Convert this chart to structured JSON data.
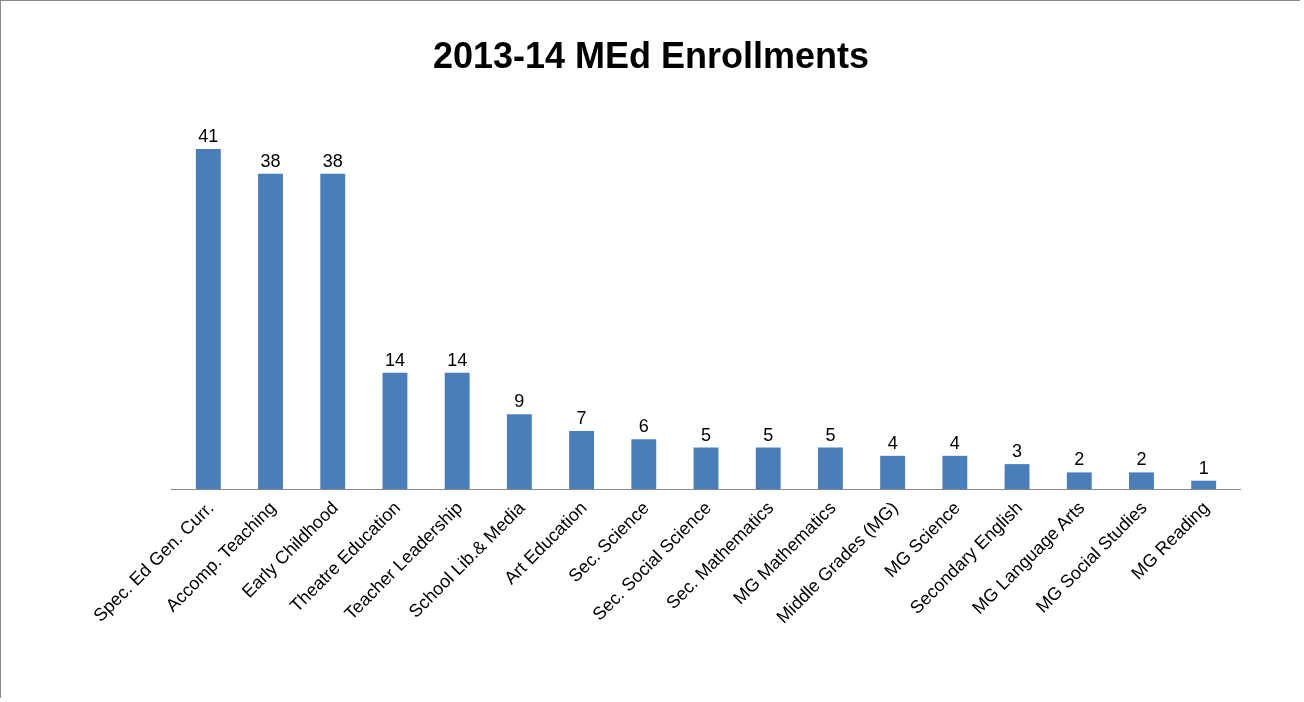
{
  "chart_data": {
    "type": "bar",
    "title": "2013-14 MEd Enrollments",
    "categories": [
      "Spec. Ed Gen. Curr.",
      "Accomp. Teaching",
      "Early Childhood",
      "Theatre Education",
      "Teacher Leadership",
      "School Lib.& Media",
      "Art Education",
      "Sec. Science",
      "Sec. Social Science",
      "Sec. Mathematics",
      "MG Mathematics",
      "Middle Grades (MG)",
      "MG Science",
      "Secondary English",
      "MG Language Arts",
      "MG Social Studies",
      "MG Reading"
    ],
    "values": [
      41,
      38,
      38,
      14,
      14,
      9,
      7,
      6,
      5,
      5,
      5,
      4,
      4,
      3,
      2,
      2,
      1
    ],
    "color": "#4a7ebb",
    "data_labels": true
  }
}
